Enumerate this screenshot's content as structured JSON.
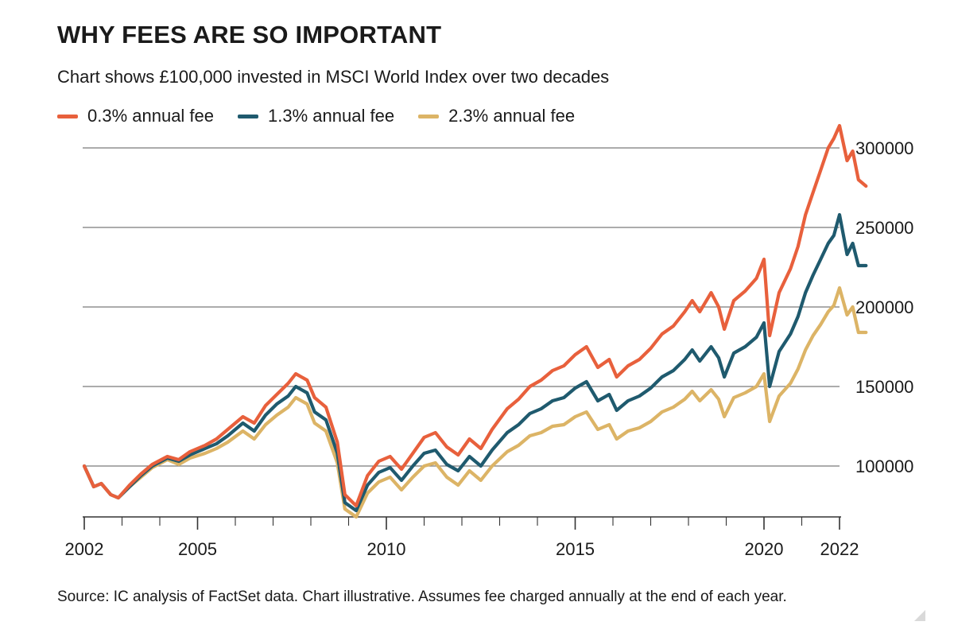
{
  "title": "WHY FEES ARE SO IMPORTANT",
  "subtitle": "Chart shows £100,000 invested in MSCI World Index over two decades",
  "source": "Source: IC analysis of FactSet data. Chart illustrative. Assumes fee charged annually at the end of each year.",
  "colors": {
    "fee_low": "#e8603c",
    "fee_mid": "#1f5a6e",
    "fee_high": "#dcb466",
    "grid": "#7a7a7a",
    "axis": "#333333"
  },
  "chart_data": {
    "type": "line",
    "x_range": [
      2002,
      2022
    ],
    "ylim": [
      68000,
      318000
    ],
    "y_ticks": [
      100000,
      150000,
      200000,
      250000,
      300000
    ],
    "y_tick_labels": [
      "100000",
      "150000",
      "200000",
      "250000",
      "300000"
    ],
    "x_tick_labels": [
      {
        "x": 2002,
        "label": "2002"
      },
      {
        "x": 2005,
        "label": "2005"
      },
      {
        "x": 2010,
        "label": "2010"
      },
      {
        "x": 2015,
        "label": "2015"
      },
      {
        "x": 2020,
        "label": "2020"
      },
      {
        "x": 2022,
        "label": "2022"
      }
    ],
    "grid": "horizontal",
    "legend_position": "top-left",
    "series": [
      {
        "name": "0.3% annual fee",
        "points": [
          [
            2002.0,
            100000
          ],
          [
            2002.25,
            87000
          ],
          [
            2002.45,
            89000
          ],
          [
            2002.7,
            82000
          ],
          [
            2002.9,
            80000
          ],
          [
            2003.2,
            88000
          ],
          [
            2003.5,
            95000
          ],
          [
            2003.8,
            101000
          ],
          [
            2004.2,
            106000
          ],
          [
            2004.5,
            104000
          ],
          [
            2004.8,
            109000
          ],
          [
            2005.2,
            113000
          ],
          [
            2005.5,
            117000
          ],
          [
            2005.8,
            123000
          ],
          [
            2006.2,
            131000
          ],
          [
            2006.5,
            127000
          ],
          [
            2006.8,
            138000
          ],
          [
            2007.1,
            145000
          ],
          [
            2007.4,
            152000
          ],
          [
            2007.6,
            158000
          ],
          [
            2007.9,
            154000
          ],
          [
            2008.1,
            143000
          ],
          [
            2008.4,
            137000
          ],
          [
            2008.7,
            115000
          ],
          [
            2008.9,
            82000
          ],
          [
            2009.2,
            75000
          ],
          [
            2009.5,
            94000
          ],
          [
            2009.8,
            103000
          ],
          [
            2010.1,
            106000
          ],
          [
            2010.4,
            98000
          ],
          [
            2010.7,
            108000
          ],
          [
            2011.0,
            118000
          ],
          [
            2011.3,
            121000
          ],
          [
            2011.6,
            112000
          ],
          [
            2011.9,
            107000
          ],
          [
            2012.2,
            117000
          ],
          [
            2012.5,
            111000
          ],
          [
            2012.8,
            123000
          ],
          [
            2013.2,
            136000
          ],
          [
            2013.5,
            142000
          ],
          [
            2013.8,
            150000
          ],
          [
            2014.1,
            154000
          ],
          [
            2014.4,
            160000
          ],
          [
            2014.7,
            163000
          ],
          [
            2015.0,
            170000
          ],
          [
            2015.3,
            175000
          ],
          [
            2015.6,
            162000
          ],
          [
            2015.9,
            167000
          ],
          [
            2016.1,
            156000
          ],
          [
            2016.4,
            163000
          ],
          [
            2016.7,
            167000
          ],
          [
            2017.0,
            174000
          ],
          [
            2017.3,
            183000
          ],
          [
            2017.6,
            188000
          ],
          [
            2017.9,
            197000
          ],
          [
            2018.1,
            204000
          ],
          [
            2018.3,
            197000
          ],
          [
            2018.6,
            209000
          ],
          [
            2018.8,
            200000
          ],
          [
            2018.95,
            186000
          ],
          [
            2019.2,
            204000
          ],
          [
            2019.5,
            210000
          ],
          [
            2019.8,
            218000
          ],
          [
            2020.0,
            230000
          ],
          [
            2020.15,
            182000
          ],
          [
            2020.4,
            209000
          ],
          [
            2020.7,
            224000
          ],
          [
            2020.9,
            238000
          ],
          [
            2021.1,
            258000
          ],
          [
            2021.3,
            272000
          ],
          [
            2021.5,
            286000
          ],
          [
            2021.7,
            300000
          ],
          [
            2021.85,
            306000
          ],
          [
            2022.0,
            314000
          ],
          [
            2022.2,
            292000
          ],
          [
            2022.35,
            298000
          ],
          [
            2022.5,
            280000
          ],
          [
            2022.7,
            276000
          ]
        ]
      },
      {
        "name": "1.3% annual fee",
        "points": [
          [
            2002.0,
            100000
          ],
          [
            2002.25,
            87000
          ],
          [
            2002.45,
            89000
          ],
          [
            2002.7,
            82000
          ],
          [
            2002.9,
            80000
          ],
          [
            2003.2,
            87000
          ],
          [
            2003.5,
            94000
          ],
          [
            2003.8,
            100000
          ],
          [
            2004.2,
            105000
          ],
          [
            2004.5,
            103000
          ],
          [
            2004.8,
            107000
          ],
          [
            2005.2,
            111000
          ],
          [
            2005.5,
            114000
          ],
          [
            2005.8,
            119000
          ],
          [
            2006.2,
            127000
          ],
          [
            2006.5,
            122000
          ],
          [
            2006.8,
            132000
          ],
          [
            2007.1,
            139000
          ],
          [
            2007.4,
            144000
          ],
          [
            2007.6,
            150000
          ],
          [
            2007.9,
            146000
          ],
          [
            2008.1,
            134000
          ],
          [
            2008.4,
            129000
          ],
          [
            2008.7,
            108000
          ],
          [
            2008.9,
            77000
          ],
          [
            2009.2,
            72000
          ],
          [
            2009.5,
            88000
          ],
          [
            2009.8,
            96000
          ],
          [
            2010.1,
            99000
          ],
          [
            2010.4,
            91000
          ],
          [
            2010.7,
            100000
          ],
          [
            2011.0,
            108000
          ],
          [
            2011.3,
            110000
          ],
          [
            2011.6,
            101000
          ],
          [
            2011.9,
            97000
          ],
          [
            2012.2,
            106000
          ],
          [
            2012.5,
            100000
          ],
          [
            2012.8,
            110000
          ],
          [
            2013.2,
            121000
          ],
          [
            2013.5,
            126000
          ],
          [
            2013.8,
            133000
          ],
          [
            2014.1,
            136000
          ],
          [
            2014.4,
            141000
          ],
          [
            2014.7,
            143000
          ],
          [
            2015.0,
            149000
          ],
          [
            2015.3,
            153000
          ],
          [
            2015.6,
            141000
          ],
          [
            2015.9,
            145000
          ],
          [
            2016.1,
            135000
          ],
          [
            2016.4,
            141000
          ],
          [
            2016.7,
            144000
          ],
          [
            2017.0,
            149000
          ],
          [
            2017.3,
            156000
          ],
          [
            2017.6,
            160000
          ],
          [
            2017.9,
            167000
          ],
          [
            2018.1,
            173000
          ],
          [
            2018.3,
            166000
          ],
          [
            2018.6,
            175000
          ],
          [
            2018.8,
            168000
          ],
          [
            2018.95,
            156000
          ],
          [
            2019.2,
            171000
          ],
          [
            2019.5,
            175000
          ],
          [
            2019.8,
            181000
          ],
          [
            2020.0,
            190000
          ],
          [
            2020.15,
            150000
          ],
          [
            2020.4,
            172000
          ],
          [
            2020.7,
            183000
          ],
          [
            2020.9,
            194000
          ],
          [
            2021.1,
            209000
          ],
          [
            2021.3,
            220000
          ],
          [
            2021.5,
            230000
          ],
          [
            2021.7,
            240000
          ],
          [
            2021.85,
            245000
          ],
          [
            2022.0,
            258000
          ],
          [
            2022.2,
            233000
          ],
          [
            2022.35,
            240000
          ],
          [
            2022.5,
            226000
          ],
          [
            2022.7,
            226000
          ]
        ]
      },
      {
        "name": "2.3% annual fee",
        "points": [
          [
            2002.0,
            100000
          ],
          [
            2002.25,
            87000
          ],
          [
            2002.45,
            89000
          ],
          [
            2002.7,
            82000
          ],
          [
            2002.9,
            80000
          ],
          [
            2003.2,
            87000
          ],
          [
            2003.5,
            93000
          ],
          [
            2003.8,
            99000
          ],
          [
            2004.2,
            104000
          ],
          [
            2004.5,
            101000
          ],
          [
            2004.8,
            105000
          ],
          [
            2005.2,
            108000
          ],
          [
            2005.5,
            111000
          ],
          [
            2005.8,
            115000
          ],
          [
            2006.2,
            122000
          ],
          [
            2006.5,
            117000
          ],
          [
            2006.8,
            126000
          ],
          [
            2007.1,
            132000
          ],
          [
            2007.4,
            137000
          ],
          [
            2007.6,
            143000
          ],
          [
            2007.9,
            139000
          ],
          [
            2008.1,
            127000
          ],
          [
            2008.4,
            122000
          ],
          [
            2008.7,
            102000
          ],
          [
            2008.9,
            73000
          ],
          [
            2009.2,
            68000
          ],
          [
            2009.5,
            83000
          ],
          [
            2009.8,
            90000
          ],
          [
            2010.1,
            93000
          ],
          [
            2010.4,
            85000
          ],
          [
            2010.7,
            93000
          ],
          [
            2011.0,
            100000
          ],
          [
            2011.3,
            102000
          ],
          [
            2011.6,
            93000
          ],
          [
            2011.9,
            88000
          ],
          [
            2012.2,
            97000
          ],
          [
            2012.5,
            91000
          ],
          [
            2012.8,
            100000
          ],
          [
            2013.2,
            109000
          ],
          [
            2013.5,
            113000
          ],
          [
            2013.8,
            119000
          ],
          [
            2014.1,
            121000
          ],
          [
            2014.4,
            125000
          ],
          [
            2014.7,
            126000
          ],
          [
            2015.0,
            131000
          ],
          [
            2015.3,
            134000
          ],
          [
            2015.6,
            123000
          ],
          [
            2015.9,
            126000
          ],
          [
            2016.1,
            117000
          ],
          [
            2016.4,
            122000
          ],
          [
            2016.7,
            124000
          ],
          [
            2017.0,
            128000
          ],
          [
            2017.3,
            134000
          ],
          [
            2017.6,
            137000
          ],
          [
            2017.9,
            142000
          ],
          [
            2018.1,
            147000
          ],
          [
            2018.3,
            141000
          ],
          [
            2018.6,
            148000
          ],
          [
            2018.8,
            142000
          ],
          [
            2018.95,
            131000
          ],
          [
            2019.2,
            143000
          ],
          [
            2019.5,
            146000
          ],
          [
            2019.8,
            150000
          ],
          [
            2020.0,
            158000
          ],
          [
            2020.15,
            128000
          ],
          [
            2020.4,
            144000
          ],
          [
            2020.7,
            152000
          ],
          [
            2020.9,
            161000
          ],
          [
            2021.1,
            173000
          ],
          [
            2021.3,
            182000
          ],
          [
            2021.5,
            189000
          ],
          [
            2021.7,
            197000
          ],
          [
            2021.85,
            201000
          ],
          [
            2022.0,
            212000
          ],
          [
            2022.2,
            195000
          ],
          [
            2022.35,
            200000
          ],
          [
            2022.5,
            184000
          ],
          [
            2022.7,
            184000
          ]
        ]
      }
    ]
  }
}
